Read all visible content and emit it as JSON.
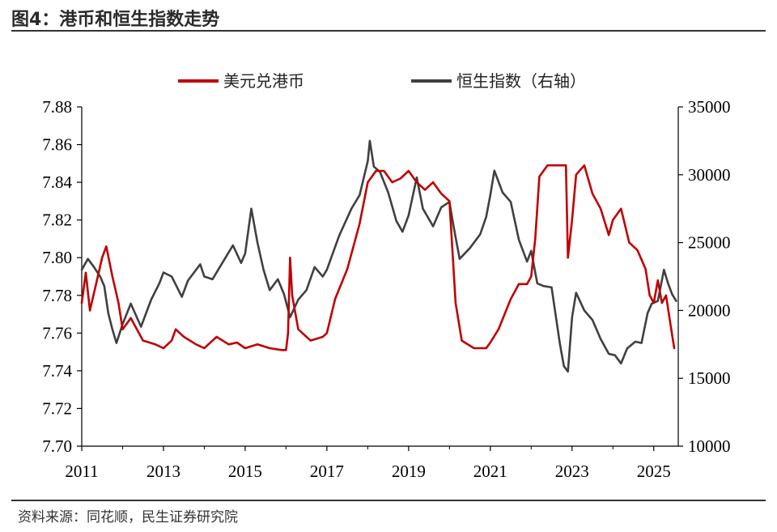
{
  "figure": {
    "title": "图4：港币和恒生指数走势",
    "source": "资料来源：同花顺，民生证券研究院"
  },
  "chart_data": {
    "type": "line",
    "title": "图4：港币和恒生指数走势",
    "xlabel": "",
    "ylabel_left": "",
    "ylabel_right": "",
    "x_ticks": [
      "2011",
      "2013",
      "2015",
      "2017",
      "2019",
      "2021",
      "2023",
      "2025"
    ],
    "xlim": [
      2011.0,
      2025.6
    ],
    "ylim_left": [
      7.7,
      7.88
    ],
    "y_ticks_left": [
      "7.70",
      "7.72",
      "7.74",
      "7.76",
      "7.78",
      "7.80",
      "7.82",
      "7.84",
      "7.86",
      "7.88"
    ],
    "ylim_right": [
      10000,
      35000
    ],
    "y_ticks_right": [
      "10000",
      "15000",
      "20000",
      "25000",
      "30000",
      "35000"
    ],
    "grid": false,
    "legend_position": "top",
    "series": [
      {
        "name": "美元兑港币",
        "axis": "left",
        "color": "#C00000",
        "x": [
          2011.0,
          2011.1,
          2011.2,
          2011.35,
          2011.5,
          2011.6,
          2011.75,
          2011.9,
          2012.0,
          2012.2,
          2012.5,
          2012.8,
          2013.0,
          2013.2,
          2013.3,
          2013.5,
          2013.8,
          2014.0,
          2014.3,
          2014.6,
          2014.8,
          2015.0,
          2015.3,
          2015.6,
          2015.9,
          2016.0,
          2016.05,
          2016.1,
          2016.15,
          2016.3,
          2016.6,
          2016.9,
          2017.0,
          2017.2,
          2017.5,
          2017.8,
          2018.0,
          2018.2,
          2018.4,
          2018.6,
          2018.8,
          2019.0,
          2019.2,
          2019.4,
          2019.6,
          2019.8,
          2020.0,
          2020.15,
          2020.3,
          2020.6,
          2020.9,
          2021.0,
          2021.2,
          2021.5,
          2021.7,
          2021.9,
          2022.0,
          2022.1,
          2022.2,
          2022.4,
          2022.6,
          2022.85,
          2022.9,
          2023.0,
          2023.1,
          2023.3,
          2023.5,
          2023.7,
          2023.9,
          2024.0,
          2024.2,
          2024.4,
          2024.6,
          2024.8,
          2024.9,
          2025.0,
          2025.1,
          2025.2,
          2025.3,
          2025.4,
          2025.5
        ],
        "values": [
          7.776,
          7.792,
          7.772,
          7.786,
          7.8,
          7.806,
          7.79,
          7.776,
          7.762,
          7.768,
          7.756,
          7.754,
          7.752,
          7.756,
          7.762,
          7.758,
          7.754,
          7.752,
          7.758,
          7.754,
          7.755,
          7.752,
          7.754,
          7.752,
          7.751,
          7.751,
          7.76,
          7.8,
          7.78,
          7.762,
          7.756,
          7.758,
          7.76,
          7.778,
          7.794,
          7.818,
          7.84,
          7.846,
          7.846,
          7.84,
          7.842,
          7.846,
          7.84,
          7.836,
          7.84,
          7.834,
          7.83,
          7.776,
          7.756,
          7.752,
          7.752,
          7.755,
          7.762,
          7.778,
          7.786,
          7.786,
          7.79,
          7.81,
          7.843,
          7.849,
          7.849,
          7.849,
          7.8,
          7.82,
          7.844,
          7.849,
          7.834,
          7.826,
          7.812,
          7.82,
          7.826,
          7.808,
          7.804,
          7.794,
          7.78,
          7.776,
          7.788,
          7.776,
          7.78,
          7.766,
          7.752
        ]
      },
      {
        "name": "恒生指数（右轴）",
        "axis": "right",
        "color": "#404040",
        "x": [
          2011.0,
          2011.15,
          2011.3,
          2011.45,
          2011.55,
          2011.65,
          2011.75,
          2011.85,
          2012.0,
          2012.2,
          2012.45,
          2012.7,
          2012.9,
          2013.0,
          2013.2,
          2013.45,
          2013.6,
          2013.9,
          2014.0,
          2014.2,
          2014.5,
          2014.7,
          2014.9,
          2015.0,
          2015.15,
          2015.3,
          2015.45,
          2015.6,
          2015.8,
          2015.95,
          2016.1,
          2016.3,
          2016.5,
          2016.7,
          2016.9,
          2017.0,
          2017.3,
          2017.6,
          2017.8,
          2018.0,
          2018.05,
          2018.15,
          2018.3,
          2018.5,
          2018.7,
          2018.85,
          2019.0,
          2019.2,
          2019.35,
          2019.6,
          2019.8,
          2020.0,
          2020.1,
          2020.25,
          2020.5,
          2020.75,
          2020.9,
          2021.0,
          2021.1,
          2021.3,
          2021.5,
          2021.7,
          2021.9,
          2022.0,
          2022.15,
          2022.3,
          2022.5,
          2022.7,
          2022.8,
          2022.9,
          2023.0,
          2023.1,
          2023.3,
          2023.5,
          2023.7,
          2023.9,
          2024.05,
          2024.2,
          2024.35,
          2024.55,
          2024.7,
          2024.85,
          2024.95,
          2025.1,
          2025.25,
          2025.35,
          2025.45,
          2025.55
        ],
        "values": [
          23000,
          23800,
          23200,
          22500,
          21800,
          19800,
          18600,
          17600,
          19000,
          20500,
          18800,
          20800,
          22000,
          22800,
          22500,
          21000,
          22200,
          23400,
          22500,
          22300,
          23800,
          24800,
          23500,
          24200,
          27500,
          25000,
          23000,
          21500,
          22300,
          21200,
          19500,
          20800,
          21500,
          23200,
          22500,
          23000,
          25500,
          27500,
          28500,
          31000,
          32500,
          30600,
          30200,
          28700,
          26600,
          25800,
          27000,
          29800,
          27500,
          26200,
          27600,
          28000,
          26200,
          23800,
          24600,
          25600,
          26900,
          28500,
          30300,
          28700,
          28000,
          25200,
          23600,
          24400,
          22000,
          21800,
          21700,
          17600,
          15900,
          15500,
          19500,
          21300,
          20000,
          19300,
          17900,
          16800,
          16700,
          16100,
          17200,
          17700,
          17600,
          19800,
          20500,
          20700,
          23000,
          22000,
          21200,
          20700
        ]
      }
    ]
  }
}
